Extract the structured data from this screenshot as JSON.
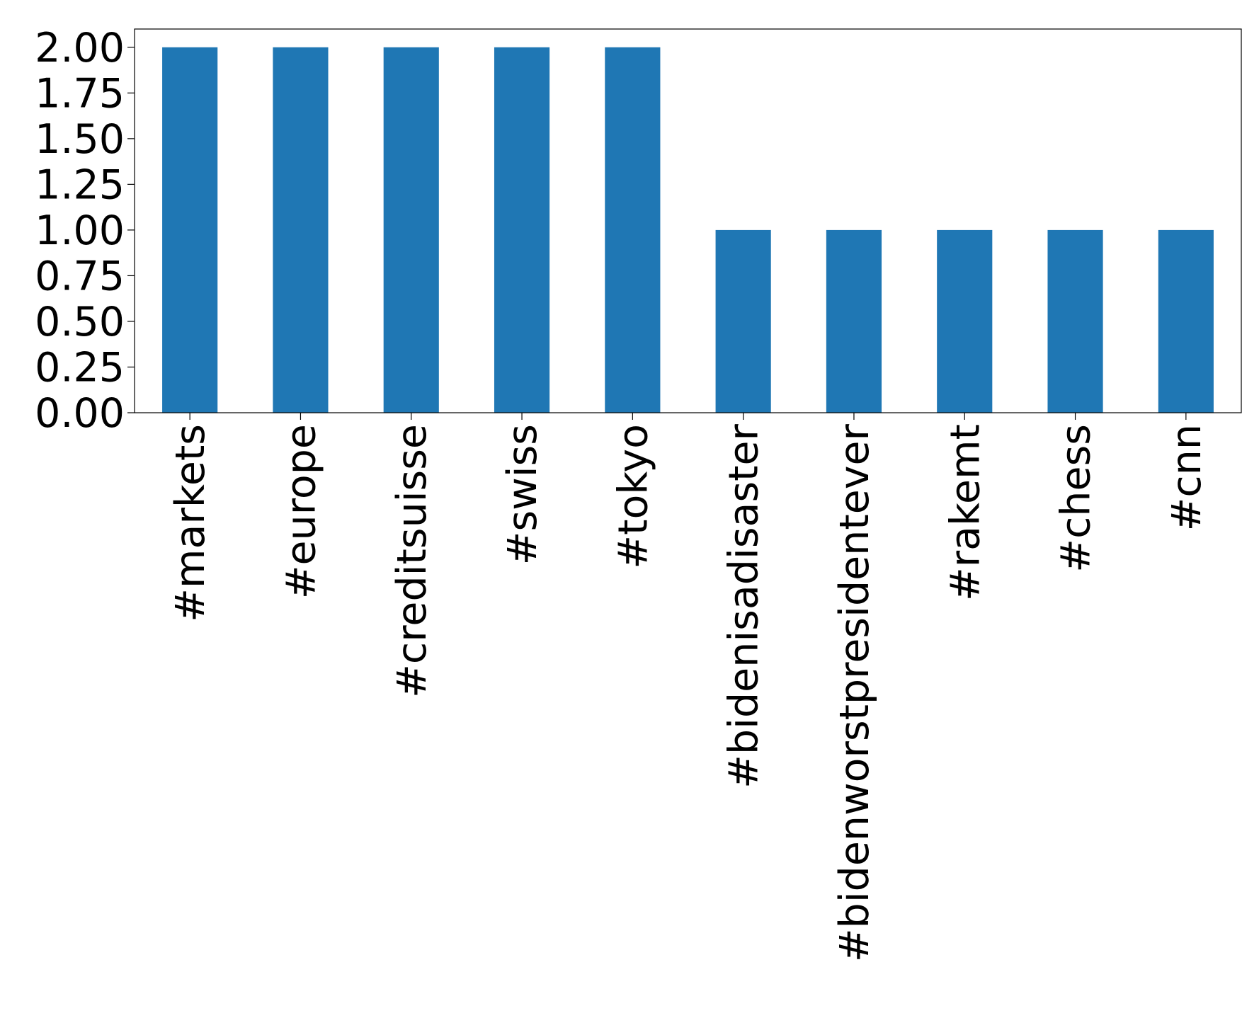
{
  "chart_data": {
    "type": "bar",
    "categories": [
      "#markets",
      "#europe",
      "#creditsuisse",
      "#swiss",
      "#tokyo",
      "#bidenisadisaster",
      "#bidenworstpresidentever",
      "#rakemt",
      "#chess",
      "#cnn"
    ],
    "values": [
      2,
      2,
      2,
      2,
      2,
      1,
      1,
      1,
      1,
      1
    ],
    "color": "#1f77b4",
    "ylim": [
      0,
      2.1
    ],
    "yticks": [
      {
        "value": 0,
        "label": "0.00"
      },
      {
        "value": 0.25,
        "label": "0.25"
      },
      {
        "value": 0.5,
        "label": "0.50"
      },
      {
        "value": 0.75,
        "label": "0.75"
      },
      {
        "value": 1,
        "label": "1.00"
      },
      {
        "value": 1.25,
        "label": "1.25"
      },
      {
        "value": 1.5,
        "label": "1.50"
      },
      {
        "value": 1.75,
        "label": "1.75"
      },
      {
        "value": 2,
        "label": "2.00"
      }
    ],
    "grid": false
  }
}
